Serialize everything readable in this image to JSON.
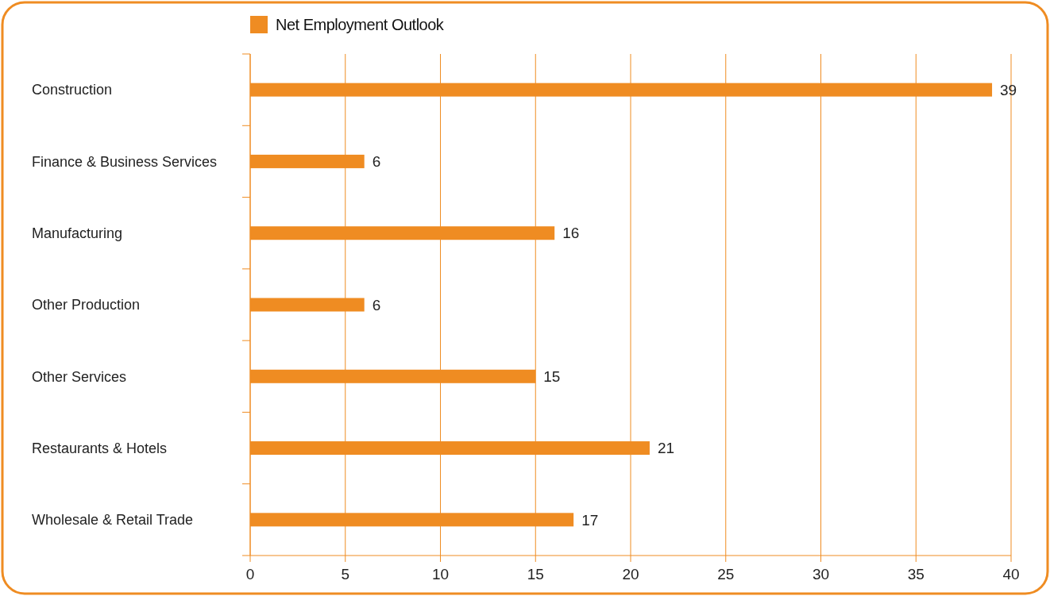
{
  "chart_data": {
    "type": "bar",
    "orientation": "horizontal",
    "categories": [
      "Construction",
      "Finance & Business Services",
      "Manufacturing",
      "Other Production",
      "Other Services",
      "Restaurants & Hotels",
      "Wholesale & Retail Trade"
    ],
    "series": [
      {
        "name": "Net Employment Outlook",
        "color": "#ef8c22",
        "values": [
          39,
          6,
          16,
          6,
          15,
          21,
          17
        ]
      }
    ],
    "xlim": [
      0,
      40
    ],
    "xticks": [
      0,
      5,
      10,
      15,
      20,
      25,
      30,
      35,
      40
    ],
    "grid": "x",
    "legend": "top",
    "data_labels": true
  }
}
